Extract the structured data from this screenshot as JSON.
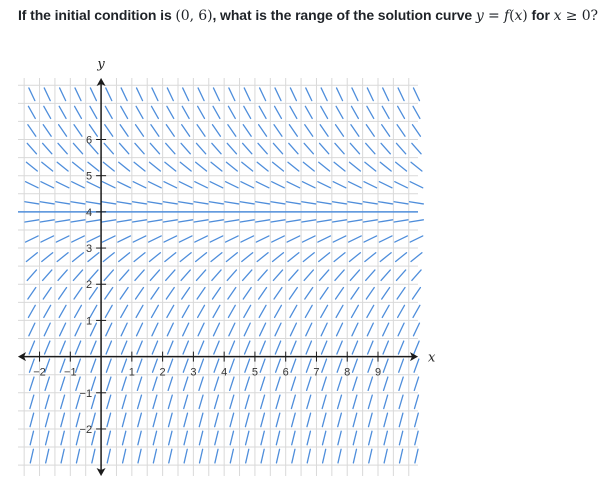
{
  "question": {
    "prefix": "If the initial condition is ",
    "point": "(0, 6)",
    "middle": ", what is the range of the solution curve ",
    "curve_y": "y",
    "curve_eq": " = ",
    "curve_f": "f",
    "curve_arg_open": "(",
    "curve_x": "x",
    "curve_arg_close": ")",
    "suffix_for": " for ",
    "cond_x": "x",
    "cond_rest": " ≥ 0?"
  },
  "chart_data": {
    "type": "slope-field",
    "xlabel": "x",
    "ylabel": "y",
    "xlim": [
      -2.7,
      10.3
    ],
    "ylim": [
      -3.3,
      7.7
    ],
    "x_ticks": [
      -2,
      -1,
      1,
      2,
      3,
      4,
      5,
      6,
      7,
      8,
      9
    ],
    "y_ticks": [
      -2,
      -1,
      1,
      2,
      3,
      4,
      5,
      6
    ],
    "grid": true,
    "equilibrium_line_y": 4,
    "colors": {
      "grid": "#d9d9d9",
      "axis": "#1b1b1b",
      "segments": "#4f8edb",
      "equilibrium": "#4f8edb"
    }
  }
}
